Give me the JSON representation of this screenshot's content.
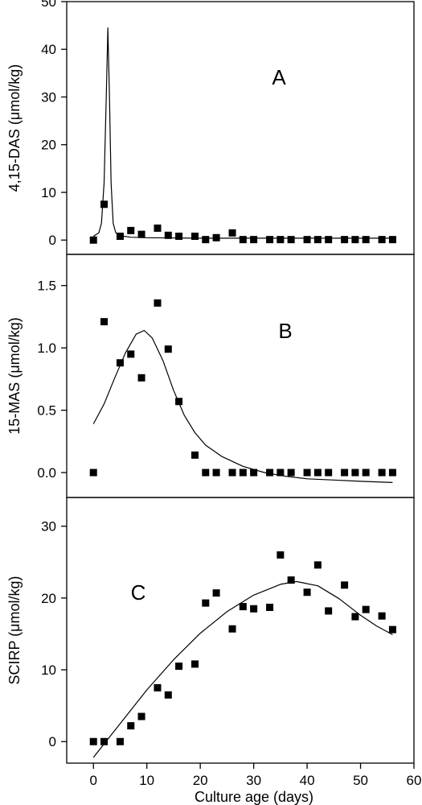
{
  "chart_data": [
    {
      "type": "scatter",
      "panel_label": "A",
      "ylabel": "4,15-DAS (μmol/kg)",
      "xlim": [
        -5,
        60
      ],
      "ylim": [
        -3,
        50
      ],
      "y_ticks": [
        0,
        10,
        20,
        30,
        40,
        50
      ],
      "y_tick_labels": [
        "0",
        "10",
        "20",
        "30",
        "40",
        "50"
      ],
      "series": [
        {
          "marker": "square",
          "x": [
            0,
            2,
            5,
            7,
            9,
            12,
            14,
            16,
            19,
            21,
            23,
            26,
            28,
            30,
            33,
            35,
            37,
            40,
            42,
            44,
            47,
            49,
            51,
            54,
            56
          ],
          "y": [
            0,
            7.5,
            0.8,
            2.0,
            1.2,
            2.5,
            1.0,
            0.8,
            0.8,
            0.1,
            0.5,
            1.5,
            0.1,
            0.1,
            0.1,
            0.1,
            0.1,
            0.1,
            0.1,
            0.1,
            0.1,
            0.1,
            0.1,
            0.1,
            0.1
          ]
        },
        {
          "style": "line",
          "x": [
            0,
            1,
            1.5,
            2,
            2.4,
            2.7,
            3.0,
            3.3,
            3.7,
            4.2,
            5,
            7,
            10,
            20,
            30,
            40,
            56
          ],
          "y": [
            0.8,
            1.5,
            3.5,
            12,
            30,
            44.5,
            30,
            12,
            3.5,
            1.5,
            0.9,
            0.6,
            0.5,
            0.4,
            0.4,
            0.4,
            0.4
          ]
        }
      ]
    },
    {
      "type": "scatter",
      "panel_label": "B",
      "ylabel": "15-MAS (μmol/kg)",
      "xlim": [
        -5,
        60
      ],
      "ylim": [
        -0.2,
        1.75
      ],
      "y_ticks": [
        0.0,
        0.5,
        1.0,
        1.5
      ],
      "y_tick_labels": [
        "0.0",
        "0.5",
        "1.0",
        "1.5"
      ],
      "series": [
        {
          "marker": "square",
          "x": [
            0,
            2,
            5,
            7,
            9,
            12,
            14,
            16,
            19,
            21,
            23,
            26,
            28,
            30,
            33,
            35,
            37,
            40,
            42,
            44,
            47,
            49,
            51,
            54,
            56
          ],
          "y": [
            0,
            1.21,
            0.88,
            0.95,
            0.76,
            1.36,
            0.99,
            0.57,
            0.14,
            0,
            0,
            0,
            0,
            0,
            0,
            0,
            0,
            0,
            0,
            0,
            0,
            0,
            0,
            0,
            0
          ]
        },
        {
          "style": "line",
          "x": [
            0,
            2,
            4,
            6,
            8,
            9.5,
            11,
            13,
            15,
            17,
            19,
            21,
            24,
            28,
            32,
            36,
            40,
            45,
            50,
            56
          ],
          "y": [
            0.39,
            0.55,
            0.76,
            0.96,
            1.11,
            1.14,
            1.08,
            0.9,
            0.66,
            0.46,
            0.32,
            0.22,
            0.13,
            0.05,
            0.0,
            -0.03,
            -0.05,
            -0.06,
            -0.07,
            -0.08
          ]
        }
      ]
    },
    {
      "type": "scatter",
      "panel_label": "C",
      "ylabel": "SCIRP (μmol/kg)",
      "xlabel": "Culture age (days)",
      "xlim": [
        -5,
        60
      ],
      "ylim": [
        -3,
        34
      ],
      "x_ticks": [
        0,
        10,
        20,
        30,
        40,
        50,
        60
      ],
      "x_tick_labels": [
        "0",
        "10",
        "20",
        "30",
        "40",
        "50",
        "60"
      ],
      "y_ticks": [
        0,
        10,
        20,
        30
      ],
      "y_tick_labels": [
        "0",
        "10",
        "20",
        "30"
      ],
      "series": [
        {
          "marker": "square",
          "x": [
            0,
            2,
            5,
            7,
            9,
            12,
            14,
            16,
            19,
            21,
            23,
            26,
            28,
            30,
            33,
            35,
            37,
            40,
            42,
            44,
            47,
            49,
            51,
            54,
            56
          ],
          "y": [
            0,
            0,
            0,
            2.2,
            3.5,
            7.5,
            6.5,
            10.5,
            10.8,
            19.3,
            20.7,
            15.7,
            18.8,
            18.5,
            18.7,
            26,
            22.5,
            20.8,
            24.6,
            18.2,
            21.8,
            17.4,
            18.4,
            17.5,
            15.6
          ]
        },
        {
          "style": "line",
          "x": [
            0,
            5,
            10,
            15,
            20,
            25,
            30,
            35,
            38,
            42,
            46,
            50,
            53,
            56
          ],
          "y": [
            -2.2,
            2.5,
            7.2,
            11.4,
            15.1,
            18.1,
            20.4,
            21.9,
            22.3,
            21.7,
            19.9,
            17.6,
            16.1,
            14.9
          ]
        }
      ]
    }
  ]
}
